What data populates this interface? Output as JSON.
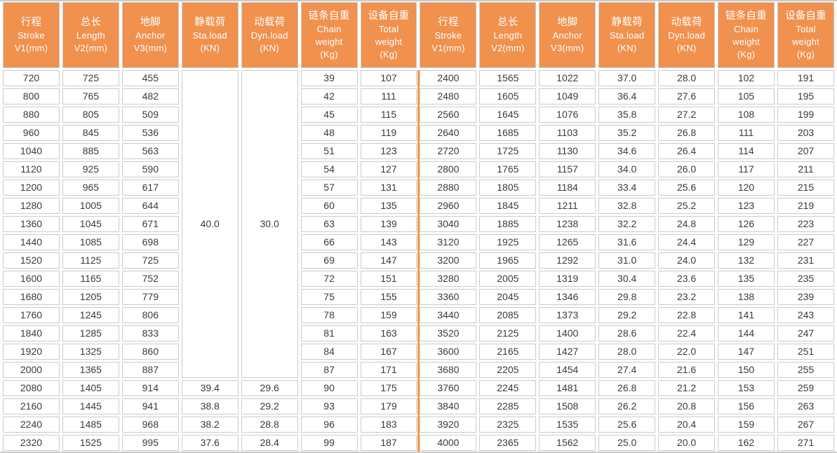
{
  "colors": {
    "header_bg": "#F0914D",
    "divider": "#F59B45",
    "grid": "#CBCBCB",
    "body_text": "#3E3A39",
    "header_text": "#FFFFFF"
  },
  "table": {
    "header_columns": [
      {
        "key": "stroke",
        "lines": [
          "行程",
          "Stroke",
          "V1(mm)"
        ]
      },
      {
        "key": "length",
        "lines": [
          "总长",
          "Length",
          "V2(mm)"
        ]
      },
      {
        "key": "anchor",
        "lines": [
          "地脚",
          "Anchor",
          "V3(mm)"
        ]
      },
      {
        "key": "sta-load",
        "lines": [
          "静载荷",
          "Sta.load",
          "(KN)"
        ]
      },
      {
        "key": "dyn-load",
        "lines": [
          "动载荷",
          "Dyn.load",
          "(KN)"
        ]
      },
      {
        "key": "chain-weight",
        "lines": [
          "链条自重",
          "Chain",
          "weight",
          "(Kg)"
        ]
      },
      {
        "key": "total-weight",
        "lines": [
          "设备自重",
          "Total",
          "weight",
          "(Kg)"
        ]
      }
    ],
    "left_half": {
      "merged_cells": {
        "sta_load": "40.0",
        "dyn_load": "30.0",
        "rows_spanned": 17
      },
      "rows": [
        [
          "720",
          "725",
          "455",
          null,
          null,
          "39",
          "107"
        ],
        [
          "800",
          "765",
          "482",
          null,
          null,
          "42",
          "111"
        ],
        [
          "880",
          "805",
          "509",
          null,
          null,
          "45",
          "115"
        ],
        [
          "960",
          "845",
          "536",
          null,
          null,
          "48",
          "119"
        ],
        [
          "1040",
          "885",
          "563",
          null,
          null,
          "51",
          "123"
        ],
        [
          "1120",
          "925",
          "590",
          null,
          null,
          "54",
          "127"
        ],
        [
          "1200",
          "965",
          "617",
          null,
          null,
          "57",
          "131"
        ],
        [
          "1280",
          "1005",
          "644",
          null,
          null,
          "60",
          "135"
        ],
        [
          "1360",
          "1045",
          "671",
          null,
          null,
          "63",
          "139"
        ],
        [
          "1440",
          "1085",
          "698",
          null,
          null,
          "66",
          "143"
        ],
        [
          "1520",
          "1125",
          "725",
          null,
          null,
          "69",
          "147"
        ],
        [
          "1600",
          "1165",
          "752",
          null,
          null,
          "72",
          "151"
        ],
        [
          "1680",
          "1205",
          "779",
          null,
          null,
          "75",
          "155"
        ],
        [
          "1760",
          "1245",
          "806",
          null,
          null,
          "78",
          "159"
        ],
        [
          "1840",
          "1285",
          "833",
          null,
          null,
          "81",
          "163"
        ],
        [
          "1920",
          "1325",
          "860",
          null,
          null,
          "84",
          "167"
        ],
        [
          "2000",
          "1365",
          "887",
          null,
          null,
          "87",
          "171"
        ],
        [
          "2080",
          "1405",
          "914",
          "39.4",
          "29.6",
          "90",
          "175"
        ],
        [
          "2160",
          "1445",
          "941",
          "38.8",
          "29.2",
          "93",
          "179"
        ],
        [
          "2240",
          "1485",
          "968",
          "38.2",
          "28.8",
          "96",
          "183"
        ],
        [
          "2320",
          "1525",
          "995",
          "37.6",
          "28.4",
          "99",
          "187"
        ]
      ]
    },
    "right_half": {
      "rows": [
        [
          "2400",
          "1565",
          "1022",
          "37.0",
          "28.0",
          "102",
          "191"
        ],
        [
          "2480",
          "1605",
          "1049",
          "36.4",
          "27.6",
          "105",
          "195"
        ],
        [
          "2560",
          "1645",
          "1076",
          "35.8",
          "27.2",
          "108",
          "199"
        ],
        [
          "2640",
          "1685",
          "1103",
          "35.2",
          "26.8",
          "111",
          "203"
        ],
        [
          "2720",
          "1725",
          "1130",
          "34.6",
          "26.4",
          "114",
          "207"
        ],
        [
          "2800",
          "1765",
          "1157",
          "34.0",
          "26.0",
          "117",
          "211"
        ],
        [
          "2880",
          "1805",
          "1184",
          "33.4",
          "25.6",
          "120",
          "215"
        ],
        [
          "2960",
          "1845",
          "1211",
          "32.8",
          "25.2",
          "123",
          "219"
        ],
        [
          "3040",
          "1885",
          "1238",
          "32.2",
          "24.8",
          "126",
          "223"
        ],
        [
          "3120",
          "1925",
          "1265",
          "31.6",
          "24.4",
          "129",
          "227"
        ],
        [
          "3200",
          "1965",
          "1292",
          "31.0",
          "24.0",
          "132",
          "231"
        ],
        [
          "3280",
          "2005",
          "1319",
          "30.4",
          "23.6",
          "135",
          "235"
        ],
        [
          "3360",
          "2045",
          "1346",
          "29.8",
          "23.2",
          "138",
          "239"
        ],
        [
          "3440",
          "2085",
          "1373",
          "29.2",
          "22.8",
          "141",
          "243"
        ],
        [
          "3520",
          "2125",
          "1400",
          "28.6",
          "22.4",
          "144",
          "247"
        ],
        [
          "3600",
          "2165",
          "1427",
          "28.0",
          "22.0",
          "147",
          "251"
        ],
        [
          "3680",
          "2205",
          "1454",
          "27.4",
          "21.6",
          "150",
          "255"
        ],
        [
          "3760",
          "2245",
          "1481",
          "26.8",
          "21.2",
          "153",
          "259"
        ],
        [
          "3840",
          "2285",
          "1508",
          "26.2",
          "20.8",
          "156",
          "263"
        ],
        [
          "3920",
          "2325",
          "1535",
          "25.6",
          "20.4",
          "159",
          "267"
        ],
        [
          "4000",
          "2365",
          "1562",
          "25.0",
          "20.0",
          "162",
          "271"
        ]
      ]
    }
  }
}
